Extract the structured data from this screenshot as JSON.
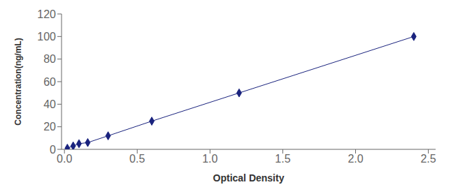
{
  "chart_data": {
    "type": "line",
    "x": [
      0.02,
      0.06,
      0.1,
      0.16,
      0.3,
      0.6,
      1.2,
      2.4
    ],
    "values": [
      1,
      3,
      5,
      6,
      12,
      25,
      50,
      100
    ],
    "xlabel": "Optical Density",
    "ylabel": "Concentration(ng/mL)",
    "xlim": [
      -0.02,
      2.55
    ],
    "ylim": [
      0,
      120
    ],
    "xticks": [
      {
        "value": 0,
        "label": "0.0"
      },
      0.5,
      {
        "value": 1,
        "label": "1.0"
      },
      1.5,
      {
        "value": 2,
        "label": "2.0"
      },
      2.5
    ],
    "yticks": [
      0,
      20,
      40,
      60,
      80,
      100,
      120
    ],
    "color": "#1A237E",
    "marker": "diamond",
    "line_style": "solid",
    "grid": false
  }
}
